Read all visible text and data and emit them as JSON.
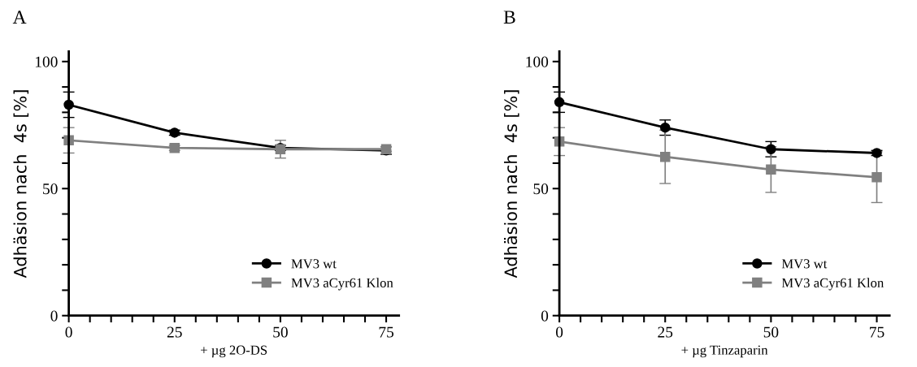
{
  "chart_data": [
    {
      "type": "line",
      "title": "A",
      "xlabel": "+ µg 2O-DS",
      "ylabel": "Adhäsion nach  4s [%]",
      "x": [
        0,
        25,
        50,
        75
      ],
      "xlim": [
        0,
        78
      ],
      "ylim": [
        0,
        104
      ],
      "xticks": [
        0,
        {
          "value": 5,
          "label": null
        },
        {
          "value": 10,
          "label": null
        },
        {
          "value": 15,
          "label": null
        },
        {
          "value": 20,
          "label": null
        },
        25,
        {
          "value": 30,
          "label": null
        },
        {
          "value": 35,
          "label": null
        },
        {
          "value": 40,
          "label": null
        },
        {
          "value": 45,
          "label": null
        },
        50,
        {
          "value": 55,
          "label": null
        },
        {
          "value": 60,
          "label": null
        },
        {
          "value": 65,
          "label": null
        },
        {
          "value": 70,
          "label": null
        },
        75
      ],
      "yticks": [
        0,
        {
          "value": 10,
          "label": null
        },
        {
          "value": 20,
          "label": null
        },
        {
          "value": 30,
          "label": null
        },
        {
          "value": 40,
          "label": null
        },
        50,
        {
          "value": 60,
          "label": null
        },
        {
          "value": 70,
          "label": null
        },
        {
          "value": 80,
          "label": null
        },
        {
          "value": 90,
          "label": null
        },
        100
      ],
      "legend": "bottom right",
      "grid": false,
      "series": [
        {
          "name": "MV3 wt",
          "color": "#000000",
          "marker": "circle",
          "values": [
            83,
            72,
            66,
            65
          ],
          "errors": [
            5,
            1,
            1,
            1.5
          ]
        },
        {
          "name": "MV3 aCyr61 Klon",
          "color": "#808080",
          "marker": "square",
          "values": [
            69,
            66,
            65.5,
            65.5
          ],
          "errors": [
            5,
            1,
            3.5,
            1
          ]
        }
      ]
    },
    {
      "type": "line",
      "title": "B",
      "xlabel": "+ µg Tinzaparin",
      "ylabel": "Adhäsion nach  4s [%]",
      "x": [
        0,
        25,
        50,
        75
      ],
      "xlim": [
        0,
        78
      ],
      "ylim": [
        0,
        104
      ],
      "xticks": [
        0,
        {
          "value": 5,
          "label": null
        },
        {
          "value": 10,
          "label": null
        },
        {
          "value": 15,
          "label": null
        },
        {
          "value": 20,
          "label": null
        },
        25,
        {
          "value": 30,
          "label": null
        },
        {
          "value": 35,
          "label": null
        },
        {
          "value": 40,
          "label": null
        },
        {
          "value": 45,
          "label": null
        },
        50,
        {
          "value": 55,
          "label": null
        },
        {
          "value": 60,
          "label": null
        },
        {
          "value": 65,
          "label": null
        },
        {
          "value": 70,
          "label": null
        },
        75
      ],
      "yticks": [
        0,
        {
          "value": 10,
          "label": null
        },
        {
          "value": 20,
          "label": null
        },
        {
          "value": 30,
          "label": null
        },
        {
          "value": 40,
          "label": null
        },
        50,
        {
          "value": 60,
          "label": null
        },
        {
          "value": 70,
          "label": null
        },
        {
          "value": 80,
          "label": null
        },
        {
          "value": 90,
          "label": null
        },
        100
      ],
      "legend": "bottom right",
      "grid": false,
      "series": [
        {
          "name": "MV3 wt",
          "color": "#000000",
          "marker": "circle",
          "values": [
            84,
            74,
            65.5,
            64
          ],
          "errors": [
            4,
            3,
            3,
            1
          ]
        },
        {
          "name": "MV3 aCyr61 Klon",
          "color": "#808080",
          "marker": "square",
          "values": [
            68.5,
            62.5,
            57.5,
            54.5
          ],
          "errors": [
            5.5,
            10.5,
            9,
            10
          ]
        }
      ]
    }
  ]
}
